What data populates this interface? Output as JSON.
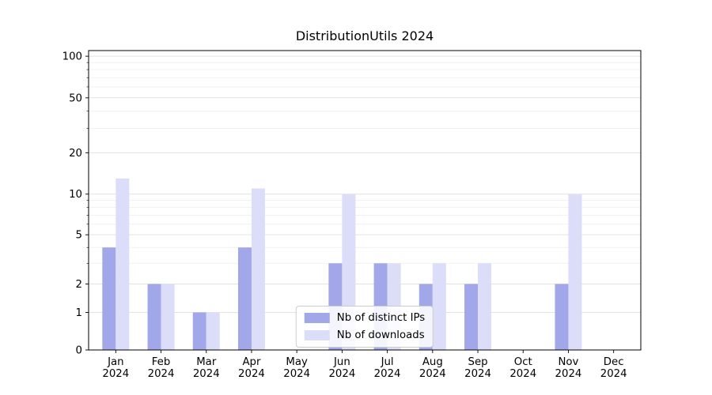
{
  "chart_data": {
    "type": "bar",
    "title": "DistributionUtils 2024",
    "yscale": "asinh",
    "grid": true,
    "legend_position": "lower center",
    "yticks": [
      0,
      1,
      2,
      5,
      10,
      20,
      50,
      100
    ],
    "ylim": [
      0,
      110
    ],
    "categories": [
      "Jan",
      "Feb",
      "Mar",
      "Apr",
      "May",
      "Jun",
      "Jul",
      "Aug",
      "Sep",
      "Oct",
      "Nov",
      "Dec"
    ],
    "year": "2024",
    "series": [
      {
        "name": "Nb of distinct IPs",
        "color": "#a2a7ea",
        "values": [
          4,
          2,
          1,
          4,
          0,
          3,
          3,
          2,
          2,
          0,
          2,
          0
        ]
      },
      {
        "name": "Nb of downloads",
        "color": "#dcddf8",
        "values": [
          13,
          2,
          1,
          11,
          0,
          10,
          3,
          3,
          3,
          0,
          10,
          0
        ]
      }
    ]
  }
}
